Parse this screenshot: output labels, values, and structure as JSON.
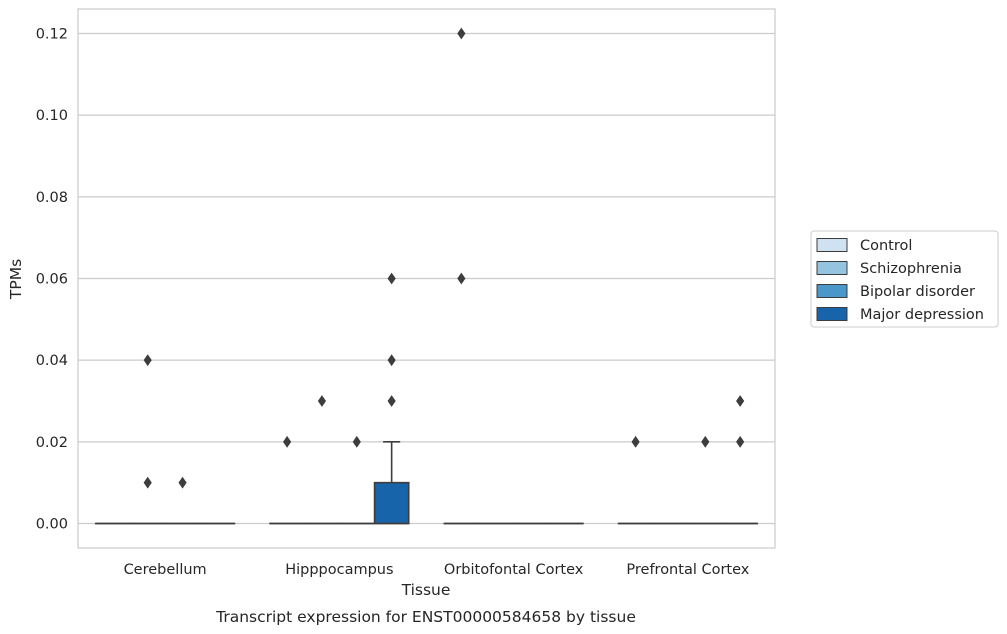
{
  "chart_data": {
    "type": "box",
    "caption": "Transcript expression for ENST00000584658 by tissue",
    "xlabel": "Tissue",
    "ylabel": "TPMs",
    "ylim": [
      -0.006,
      0.126
    ],
    "yticks": [
      "0.00",
      "0.02",
      "0.04",
      "0.06",
      "0.08",
      "0.10",
      "0.12"
    ],
    "grid": true,
    "legend_position": "right",
    "categories": [
      "Cerebellum",
      "Hipppocampus",
      "Orbitofontal Cortex",
      "Prefrontal Cortex"
    ],
    "series": [
      {
        "name": "Control",
        "color": "#d0e1f2",
        "boxes": [
          {
            "q1": 0,
            "median": 0,
            "q3": 0,
            "whisker_low": 0,
            "whisker_high": 0,
            "outliers": []
          },
          {
            "q1": 0,
            "median": 0,
            "q3": 0,
            "whisker_low": 0,
            "whisker_high": 0,
            "outliers": [
              0.02
            ]
          },
          {
            "q1": 0,
            "median": 0,
            "q3": 0,
            "whisker_low": 0,
            "whisker_high": 0,
            "outliers": [
              0.12,
              0.06
            ]
          },
          {
            "q1": 0,
            "median": 0,
            "q3": 0,
            "whisker_low": 0,
            "whisker_high": 0,
            "outliers": [
              0.02
            ]
          }
        ]
      },
      {
        "name": "Schizophrenia",
        "color": "#94c4df",
        "boxes": [
          {
            "q1": 0,
            "median": 0,
            "q3": 0,
            "whisker_low": 0,
            "whisker_high": 0,
            "outliers": [
              0.04,
              0.01
            ]
          },
          {
            "q1": 0,
            "median": 0,
            "q3": 0,
            "whisker_low": 0,
            "whisker_high": 0,
            "outliers": [
              0.03
            ]
          },
          {
            "q1": 0,
            "median": 0,
            "q3": 0,
            "whisker_low": 0,
            "whisker_high": 0,
            "outliers": []
          },
          {
            "q1": 0,
            "median": 0,
            "q3": 0,
            "whisker_low": 0,
            "whisker_high": 0,
            "outliers": []
          }
        ]
      },
      {
        "name": "Bipolar disorder",
        "color": "#4a98c9",
        "boxes": [
          {
            "q1": 0,
            "median": 0,
            "q3": 0,
            "whisker_low": 0,
            "whisker_high": 0,
            "outliers": [
              0.01
            ]
          },
          {
            "q1": 0,
            "median": 0,
            "q3": 0,
            "whisker_low": 0,
            "whisker_high": 0,
            "outliers": [
              0.02
            ]
          },
          {
            "q1": 0,
            "median": 0,
            "q3": 0,
            "whisker_low": 0,
            "whisker_high": 0,
            "outliers": []
          },
          {
            "q1": 0,
            "median": 0,
            "q3": 0,
            "whisker_low": 0,
            "whisker_high": 0,
            "outliers": [
              0.02
            ]
          }
        ]
      },
      {
        "name": "Major depression",
        "color": "#1764ab",
        "boxes": [
          {
            "q1": 0,
            "median": 0,
            "q3": 0,
            "whisker_low": 0,
            "whisker_high": 0,
            "outliers": []
          },
          {
            "q1": 0,
            "median": 0,
            "q3": 0.01,
            "whisker_low": 0,
            "whisker_high": 0.02,
            "outliers": [
              0.06,
              0.04,
              0.03
            ]
          },
          {
            "q1": 0,
            "median": 0,
            "q3": 0,
            "whisker_low": 0,
            "whisker_high": 0,
            "outliers": []
          },
          {
            "q1": 0,
            "median": 0,
            "q3": 0,
            "whisker_low": 0,
            "whisker_high": 0,
            "outliers": [
              0.03,
              0.02
            ]
          }
        ]
      }
    ]
  }
}
